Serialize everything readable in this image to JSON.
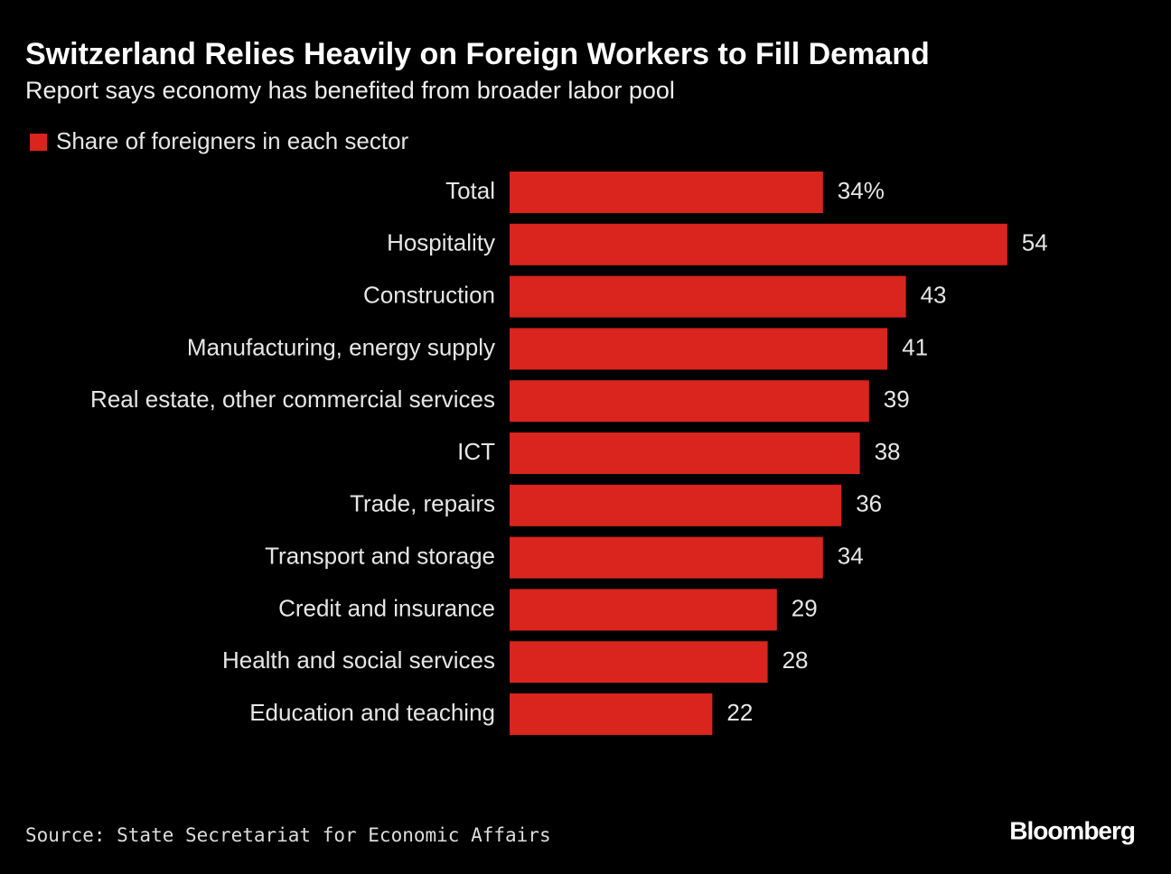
{
  "chart_data": {
    "type": "hbar",
    "title": "Switzerland Relies Heavily on Foreign Workers to Fill Demand",
    "subtitle": "Report says economy has benefited from broader labor pool",
    "categories": [
      "Total",
      "Hospitality",
      "Construction",
      "Manufacturing, energy supply",
      "Real estate, other commercial services",
      "ICT",
      "Trade, repairs",
      "Transport and storage",
      "Credit and insurance",
      "Health and social services",
      "Education and teaching"
    ],
    "series": [
      {
        "name": "Share of foreigners in each sector",
        "color": "#d9251d",
        "values": [
          34,
          54,
          43,
          41,
          39,
          38,
          36,
          34,
          29,
          28,
          22
        ],
        "value_labels": [
          "34%",
          "54",
          "43",
          "41",
          "39",
          "38",
          "36",
          "34",
          "29",
          "28",
          "22"
        ]
      }
    ],
    "source": "Source: State Secretariat for Economic Affairs",
    "brand": "Bloomberg"
  }
}
